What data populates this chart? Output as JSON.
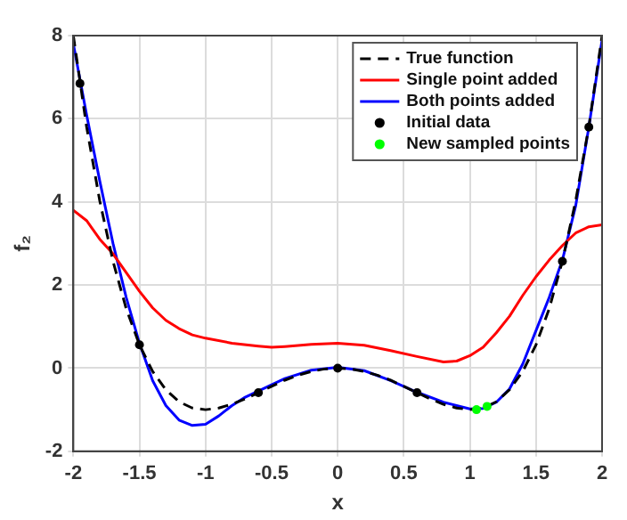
{
  "chart_data": {
    "type": "line",
    "xlabel": "x",
    "ylabel": "f₂",
    "xlim": [
      -2,
      2
    ],
    "ylim": [
      -2,
      8
    ],
    "xticks": [
      -2,
      -1.5,
      -1,
      -0.5,
      0,
      0.5,
      1,
      1.5,
      2
    ],
    "yticks": [
      -2,
      0,
      2,
      4,
      6,
      8
    ],
    "grid": true,
    "legend": "top right",
    "series": [
      {
        "name": "True function",
        "type": "line",
        "color": "#000000",
        "line_style": "dashed",
        "marker": "none",
        "x": [
          -2,
          -1.9,
          -1.8,
          -1.7,
          -1.6,
          -1.5,
          -1.4,
          -1.3,
          -1.2,
          -1.1,
          -1,
          -0.9,
          -0.8,
          -0.7,
          -0.6,
          -0.5,
          -0.4,
          -0.3,
          -0.2,
          -0.1,
          0,
          0.1,
          0.2,
          0.3,
          0.4,
          0.5,
          0.6,
          0.7,
          0.8,
          0.9,
          1,
          1.1,
          1.2,
          1.3,
          1.4,
          1.5,
          1.6,
          1.7,
          1.8,
          1.9,
          2
        ],
        "values": [
          8,
          5.81,
          4.02,
          2.57,
          1.43,
          0.56,
          -0.08,
          -0.52,
          -0.81,
          -0.96,
          -1,
          -0.96,
          -0.87,
          -0.74,
          -0.59,
          -0.44,
          -0.29,
          -0.17,
          -0.08,
          -0.02,
          0,
          -0.02,
          -0.08,
          -0.17,
          -0.29,
          -0.44,
          -0.59,
          -0.74,
          -0.87,
          -0.96,
          -1,
          -0.96,
          -0.81,
          -0.52,
          -0.08,
          0.56,
          1.43,
          2.57,
          4.02,
          5.81,
          8
        ]
      },
      {
        "name": "Single point added",
        "type": "line",
        "color": "#ff0000",
        "line_style": "solid",
        "marker": "none",
        "x": [
          -2,
          -1.9,
          -1.8,
          -1.7,
          -1.6,
          -1.5,
          -1.4,
          -1.3,
          -1.2,
          -1.1,
          -1,
          -0.8,
          -0.6,
          -0.5,
          -0.4,
          -0.2,
          0,
          0.2,
          0.4,
          0.6,
          0.8,
          0.9,
          1,
          1.1,
          1.2,
          1.3,
          1.4,
          1.5,
          1.6,
          1.7,
          1.8,
          1.9,
          2
        ],
        "values": [
          3.8,
          3.55,
          3.1,
          2.75,
          2.3,
          1.85,
          1.45,
          1.15,
          0.95,
          0.8,
          0.72,
          0.6,
          0.53,
          0.5,
          0.52,
          0.57,
          0.6,
          0.55,
          0.42,
          0.28,
          0.15,
          0.17,
          0.3,
          0.5,
          0.85,
          1.25,
          1.75,
          2.2,
          2.6,
          2.95,
          3.25,
          3.4,
          3.45
        ]
      },
      {
        "name": "Both points added",
        "type": "line",
        "color": "#0000ff",
        "line_style": "solid",
        "marker": "none",
        "x": [
          -2,
          -1.9,
          -1.8,
          -1.7,
          -1.6,
          -1.5,
          -1.4,
          -1.3,
          -1.2,
          -1.1,
          -1,
          -0.9,
          -0.8,
          -0.7,
          -0.6,
          -0.4,
          -0.2,
          0,
          0.2,
          0.4,
          0.6,
          0.8,
          1,
          1.1,
          1.2,
          1.3,
          1.4,
          1.5,
          1.6,
          1.7,
          1.8,
          1.9,
          2
        ],
        "values": [
          7.8,
          6.1,
          4.5,
          3,
          1.7,
          0.6,
          -0.3,
          -0.9,
          -1.25,
          -1.38,
          -1.35,
          -1.15,
          -0.9,
          -0.7,
          -0.55,
          -0.25,
          -0.05,
          0.02,
          -0.06,
          -0.3,
          -0.58,
          -0.82,
          -0.98,
          -0.97,
          -0.82,
          -0.5,
          0.1,
          0.9,
          1.7,
          2.6,
          3.9,
          5.8,
          7.9
        ]
      },
      {
        "name": "Initial data",
        "type": "scatter",
        "color": "#000000",
        "marker": "circle",
        "x": [
          -1.95,
          -1.5,
          -0.6,
          0,
          0.6,
          1.7,
          1.9
        ],
        "values": [
          6.85,
          0.56,
          -0.59,
          0,
          -0.59,
          2.57,
          5.8
        ]
      },
      {
        "name": "New sampled points",
        "type": "scatter",
        "color": "#00ff00",
        "marker": "circle",
        "x": [
          1.05,
          1.13
        ],
        "values": [
          -1,
          -0.92
        ]
      }
    ]
  }
}
